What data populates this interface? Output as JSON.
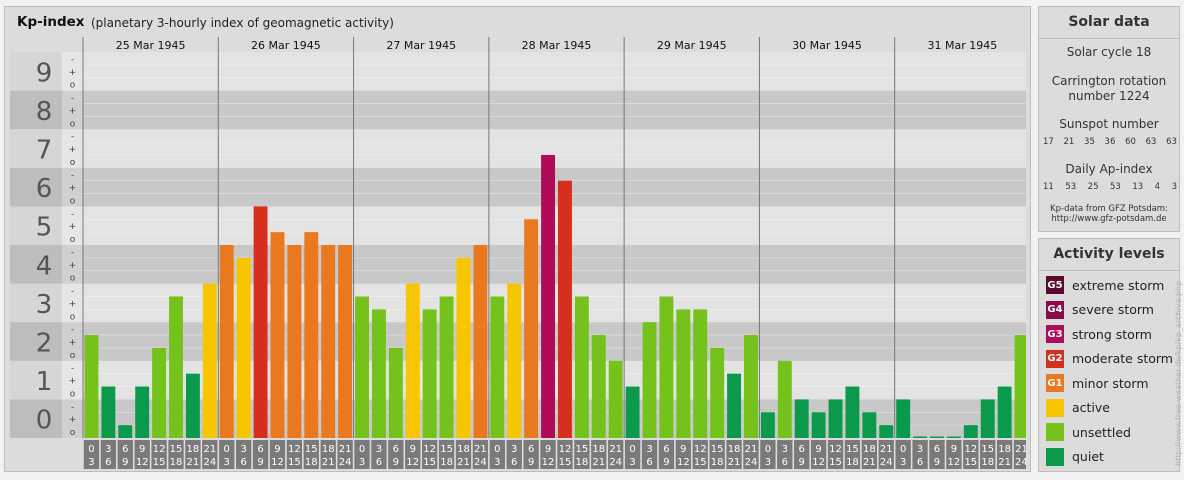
{
  "header": {
    "title": "Kp-index",
    "subtitle": "(planetary 3-hourly index of geomagnetic activity)"
  },
  "colors": {
    "quiet": "#0b9a4b",
    "unsettled": "#76c21d",
    "active": "#f7c600",
    "minor_storm": "#e9781e",
    "moderate_storm": "#d72f1e",
    "strong_storm": "#b00b57",
    "severe_storm": "#8a0a4a",
    "extreme_storm": "#5a0a2a"
  },
  "chart_data": {
    "type": "bar",
    "y_labels": [
      "0",
      "1",
      "2",
      "3",
      "4",
      "5",
      "6",
      "7",
      "8",
      "9"
    ],
    "y_sublabels": [
      "o",
      "+",
      "-"
    ],
    "ylim": [
      0,
      9
    ],
    "days": [
      "25 Mar 1945",
      "26 Mar 1945",
      "27 Mar 1945",
      "28 Mar 1945",
      "29 Mar 1945",
      "30 Mar 1945",
      "31 Mar 1945"
    ],
    "interval_starts": [
      "0",
      "3",
      "6",
      "9",
      "12",
      "15",
      "18",
      "21"
    ],
    "interval_ends": [
      "3",
      "6",
      "9",
      "12",
      "15",
      "18",
      "21",
      "24"
    ],
    "values": [
      [
        2.667,
        1.333,
        0.333,
        1.333,
        2.333,
        3.667,
        1.667,
        4.0
      ],
      [
        5.0,
        4.667,
        6.0,
        5.333,
        5.0,
        5.333,
        5.0,
        5.0
      ],
      [
        3.667,
        3.333,
        2.333,
        4.0,
        3.333,
        3.667,
        4.667,
        5.0
      ],
      [
        3.667,
        4.0,
        5.667,
        7.333,
        6.667,
        3.667,
        2.667,
        2.0
      ],
      [
        1.333,
        3.0,
        3.667,
        3.333,
        3.333,
        2.333,
        1.667,
        2.667
      ],
      [
        0.667,
        2.0,
        1.0,
        0.667,
        1.0,
        1.333,
        0.667,
        0.333
      ],
      [
        1.0,
        0.0,
        0.0,
        0.0,
        0.333,
        1.0,
        1.333,
        2.667
      ]
    ]
  },
  "solar": {
    "heading": "Solar data",
    "cycle": "Solar cycle 18",
    "carrington_line1": "Carrington rotation",
    "carrington_line2": "number 1224",
    "sunspot_heading": "Sunspot number",
    "sunspot_values": [
      "17",
      "21",
      "35",
      "36",
      "60",
      "63",
      "63"
    ],
    "ap_heading": "Daily Ap-index",
    "ap_values": [
      "11",
      "53",
      "25",
      "53",
      "13",
      "4",
      "3"
    ],
    "source_line1": "Kp-data from GFZ Potsdam:",
    "source_line2": "http://www.gfz-potsdam.de"
  },
  "activity": {
    "heading": "Activity levels",
    "levels": [
      {
        "code": "G5",
        "label": "extreme storm",
        "color_key": "extreme_storm"
      },
      {
        "code": "G4",
        "label": "severe storm",
        "color_key": "severe_storm"
      },
      {
        "code": "G3",
        "label": "strong storm",
        "color_key": "strong_storm"
      },
      {
        "code": "G2",
        "label": "moderate storm",
        "color_key": "moderate_storm"
      },
      {
        "code": "G1",
        "label": "minor storm",
        "color_key": "minor_storm"
      },
      {
        "code": "",
        "label": "active",
        "color_key": "active"
      },
      {
        "code": "",
        "label": "unsettled",
        "color_key": "unsettled"
      },
      {
        "code": "",
        "label": "quiet",
        "color_key": "quiet"
      }
    ]
  },
  "credit": "http://www.free-weather.de/kp/kp_archive.php"
}
